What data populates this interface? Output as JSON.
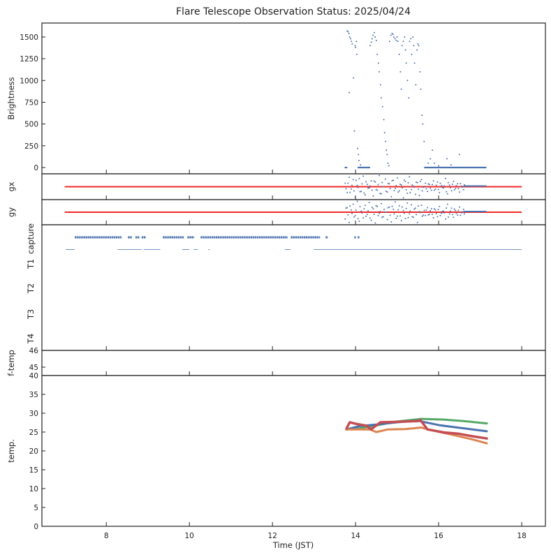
{
  "chart_data": {
    "type": "scatter",
    "title": "Flare Telescope Observation Status: 2025/04/24",
    "xlabel": "Time (JST)",
    "xlim": [
      6.45,
      18.57
    ],
    "xticks": [
      8,
      10,
      12,
      14,
      16,
      18
    ],
    "xtick_labels": [
      "8",
      "10",
      "12",
      "14",
      "16",
      "18"
    ],
    "colors": {
      "blue": "#4c72b0",
      "orange": "#dd8452",
      "green": "#55a868",
      "red": "#c44e52",
      "reference": "#f02828"
    },
    "panels": {
      "brightness": {
        "ylabel": "Brightness",
        "ylim": [
          -72,
          1660
        ],
        "yticks": [
          0,
          250,
          500,
          750,
          1000,
          1250,
          1500
        ],
        "ytick_labels": [
          "0",
          "250",
          "500",
          "750",
          "1000",
          "1250",
          "1500"
        ],
        "points": [
          [
            13.75,
            0
          ],
          [
            13.78,
            0
          ],
          [
            13.8,
            1570
          ],
          [
            13.82,
            1560
          ],
          [
            13.84,
            1540
          ],
          [
            13.86,
            1500
          ],
          [
            13.88,
            1480
          ],
          [
            13.9,
            1450
          ],
          [
            13.92,
            1420
          ],
          [
            13.85,
            860
          ],
          [
            13.95,
            1030
          ],
          [
            13.97,
            420
          ],
          [
            13.99,
            1400
          ],
          [
            14.0,
            1380
          ],
          [
            14.02,
            1450
          ],
          [
            14.03,
            1300
          ],
          [
            14.05,
            220
          ],
          [
            14.07,
            150
          ],
          [
            14.08,
            80
          ],
          [
            14.12,
            30
          ],
          [
            14.35,
            1400
          ],
          [
            14.38,
            1440
          ],
          [
            14.4,
            1480
          ],
          [
            14.42,
            1520
          ],
          [
            14.45,
            1550
          ],
          [
            14.47,
            1500
          ],
          [
            14.5,
            1460
          ],
          [
            14.52,
            1300
          ],
          [
            14.55,
            1200
          ],
          [
            14.57,
            1100
          ],
          [
            14.6,
            950
          ],
          [
            14.62,
            800
          ],
          [
            14.65,
            700
          ],
          [
            14.68,
            550
          ],
          [
            14.7,
            400
          ],
          [
            14.72,
            300
          ],
          [
            14.74,
            200
          ],
          [
            14.76,
            150
          ],
          [
            14.78,
            50
          ],
          [
            14.8,
            20
          ],
          [
            14.82,
            1450
          ],
          [
            14.85,
            1520
          ],
          [
            14.88,
            1540
          ],
          [
            14.9,
            1530
          ],
          [
            14.92,
            1500
          ],
          [
            14.95,
            1480
          ],
          [
            14.98,
            1460
          ],
          [
            15.0,
            1500
          ],
          [
            15.02,
            1450
          ],
          [
            15.05,
            1300
          ],
          [
            15.08,
            1100
          ],
          [
            15.1,
            900
          ],
          [
            15.12,
            1400
          ],
          [
            15.15,
            1450
          ],
          [
            15.18,
            1500
          ],
          [
            15.2,
            1350
          ],
          [
            15.22,
            1200
          ],
          [
            15.25,
            1000
          ],
          [
            15.28,
            800
          ],
          [
            15.3,
            1450
          ],
          [
            15.33,
            1480
          ],
          [
            15.35,
            1300
          ],
          [
            15.38,
            1500
          ],
          [
            15.4,
            1400
          ],
          [
            15.42,
            1200
          ],
          [
            15.45,
            950
          ],
          [
            15.48,
            1350
          ],
          [
            15.5,
            1420
          ],
          [
            15.52,
            1400
          ],
          [
            15.55,
            1100
          ],
          [
            15.57,
            900
          ],
          [
            15.6,
            600
          ],
          [
            15.62,
            500
          ],
          [
            15.65,
            300
          ],
          [
            15.75,
            50
          ],
          [
            15.8,
            100
          ],
          [
            15.85,
            200
          ],
          [
            15.9,
            50
          ],
          [
            16.0,
            20
          ],
          [
            16.2,
            100
          ],
          [
            16.3,
            30
          ],
          [
            16.5,
            150
          ]
        ],
        "zero_segments": [
          [
            13.75,
            13.8
          ],
          [
            14.05,
            14.35
          ],
          [
            15.65,
            17.15
          ]
        ]
      },
      "gx": {
        "ylabel": "gx",
        "ylim": [
          -1.1,
          1.1
        ],
        "reference": {
          "value": 0,
          "range": [
            7.0,
            18.0
          ]
        },
        "scatter_range": [
          13.75,
          16.6
        ],
        "values": [
          0.3,
          -0.5,
          0.8,
          -0.2,
          0.6,
          -0.9,
          0.1,
          0.7,
          -0.4,
          0.9,
          -0.7,
          0.2,
          -0.1,
          0.5,
          -0.8,
          0.4,
          -0.3,
          0.95,
          -0.6,
          0.0,
          0.65,
          -0.45,
          0.25,
          -0.85,
          0.55,
          -0.15,
          0.75,
          -0.35,
          0.15,
          -0.95,
          0.45,
          -0.55,
          0.85,
          -0.25,
          0.05,
          -0.65,
          0.35,
          -0.75,
          0.6,
          -0.05,
          0.3,
          -0.4,
          0.2,
          -0.3,
          0.5,
          -0.2,
          0.4,
          -0.5,
          0.1,
          -0.1,
          0.7,
          -0.6,
          0.15,
          -0.35,
          0.45,
          -0.15,
          0.25,
          -0.45,
          0.05,
          -0.25
        ],
        "flat_range": [
          16.6,
          17.15
        ]
      },
      "gy": {
        "ylabel": "gy",
        "ylim": [
          -1.1,
          1.1
        ],
        "reference": {
          "value": 0,
          "range": [
            7.0,
            18.0
          ]
        },
        "scatter_range": [
          13.75,
          16.6
        ],
        "values": [
          -0.6,
          0.4,
          -0.9,
          0.2,
          0.7,
          -0.3,
          0.95,
          -0.8,
          0.1,
          -0.5,
          0.6,
          -0.2,
          0.85,
          -0.7,
          0.3,
          -0.95,
          0.5,
          -0.1,
          0.75,
          -0.4,
          0.0,
          -0.65,
          0.45,
          -0.85,
          0.25,
          0.9,
          -0.35,
          0.55,
          -0.75,
          0.15,
          -0.55,
          0.8,
          -0.15,
          0.65,
          -0.45,
          0.35,
          -0.9,
          0.05,
          0.6,
          -0.25,
          -0.3,
          0.4,
          -0.2,
          0.3,
          -0.5,
          0.2,
          -0.4,
          0.5,
          -0.1,
          0.1,
          -0.6,
          0.7,
          -0.15,
          0.35,
          -0.45,
          0.15,
          -0.25,
          0.45,
          -0.05,
          0.25
        ],
        "flat_range": [
          16.6,
          17.15
        ]
      },
      "status": {
        "ytick_labels": [
          "capture",
          "T1",
          "T2",
          "T3",
          "T4"
        ],
        "capture_on_segments": [
          [
            7.24,
            8.35
          ],
          [
            8.52,
            8.6
          ],
          [
            8.7,
            8.78
          ],
          [
            8.85,
            8.94
          ],
          [
            9.36,
            9.85
          ],
          [
            9.95,
            10.1
          ],
          [
            10.27,
            12.35
          ],
          [
            12.44,
            13.13
          ],
          [
            13.28,
            13.32
          ],
          [
            13.97,
            13.99
          ],
          [
            14.05,
            14.08
          ]
        ],
        "capture_off_segments": [
          [
            7.02,
            7.24
          ],
          [
            8.27,
            8.85
          ],
          [
            8.9,
            9.3
          ],
          [
            9.83,
            10.0
          ],
          [
            10.1,
            10.2
          ],
          [
            10.45,
            10.49
          ],
          [
            12.3,
            12.44
          ],
          [
            12.99,
            18.0
          ]
        ]
      },
      "ftemp": {
        "ylabel": "f-temp",
        "ylim": [
          44.5,
          46
        ],
        "yticks": [
          45,
          46
        ],
        "ytick_labels": [
          "45",
          "46"
        ]
      },
      "temp": {
        "ylabel": "temp.",
        "ylim": [
          0,
          40
        ],
        "yticks": [
          0,
          5,
          10,
          15,
          20,
          25,
          30,
          35,
          40
        ],
        "ytick_labels": [
          "0",
          "5",
          "10",
          "15",
          "20",
          "25",
          "30",
          "35",
          "40"
        ],
        "series": [
          {
            "name": "green",
            "color": "#55a868",
            "points": [
              [
                13.78,
                25.7
              ],
              [
                14.1,
                26.0
              ],
              [
                14.47,
                26.7
              ],
              [
                15.0,
                27.8
              ],
              [
                15.58,
                28.5
              ],
              [
                16.15,
                28.3
              ],
              [
                16.6,
                27.9
              ],
              [
                17.16,
                27.3
              ]
            ]
          },
          {
            "name": "blue",
            "color": "#4c72b0",
            "points": [
              [
                13.78,
                25.7
              ],
              [
                14.1,
                26.6
              ],
              [
                14.5,
                27.0
              ],
              [
                15.0,
                27.6
              ],
              [
                15.5,
                28.0
              ],
              [
                16.03,
                26.8
              ],
              [
                16.6,
                26.0
              ],
              [
                17.16,
                25.2
              ]
            ]
          },
          {
            "name": "orange",
            "color": "#dd8452",
            "points": [
              [
                13.78,
                25.7
              ],
              [
                14.35,
                25.7
              ],
              [
                14.5,
                25.0
              ],
              [
                14.78,
                25.7
              ],
              [
                15.2,
                25.8
              ],
              [
                15.58,
                26.2
              ],
              [
                15.75,
                25.7
              ],
              [
                16.36,
                24.2
              ],
              [
                16.8,
                23.1
              ],
              [
                17.16,
                22.0
              ]
            ]
          },
          {
            "name": "red",
            "color": "#c44e52",
            "points": [
              [
                13.78,
                25.9
              ],
              [
                13.86,
                27.6
              ],
              [
                14.0,
                27.2
              ],
              [
                14.26,
                26.7
              ],
              [
                14.37,
                25.7
              ],
              [
                14.6,
                27.6
              ],
              [
                15.0,
                27.7
              ],
              [
                15.5,
                27.9
              ],
              [
                15.56,
                28.2
              ],
              [
                15.73,
                25.7
              ],
              [
                16.12,
                24.9
              ],
              [
                16.46,
                24.6
              ],
              [
                16.8,
                23.9
              ],
              [
                17.16,
                23.3
              ]
            ]
          }
        ]
      }
    }
  }
}
